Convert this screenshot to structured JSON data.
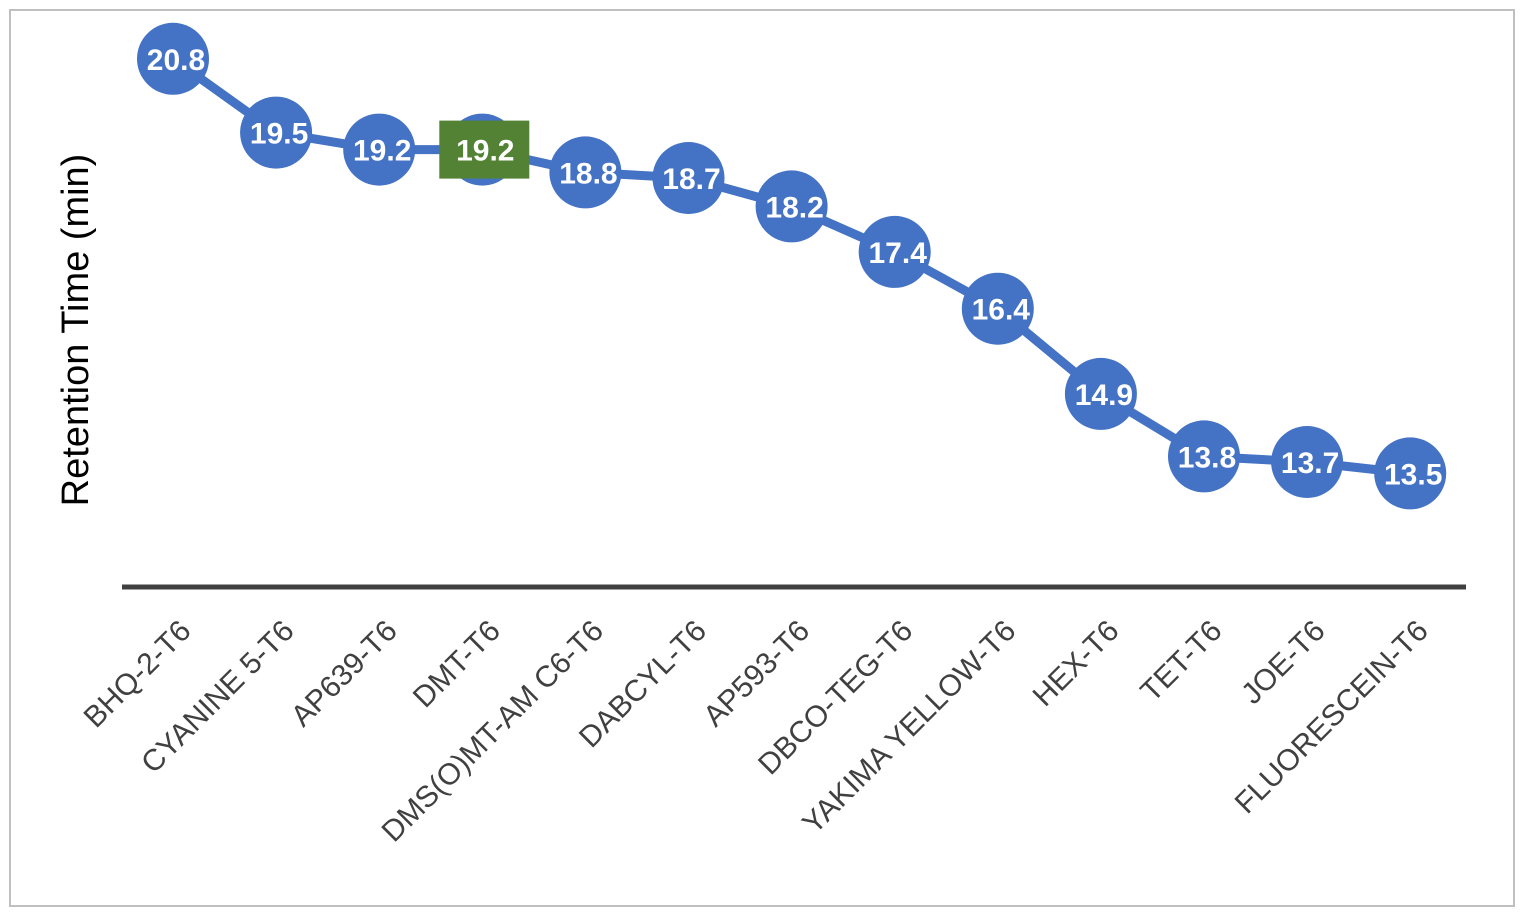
{
  "chart_data": {
    "type": "line",
    "title": "",
    "xlabel": "",
    "ylabel": "Retention Time (min)",
    "ylim": [
      11.5,
      21.5
    ],
    "grid": false,
    "legend": "none",
    "categories": [
      "BHQ-2-T6",
      "CYANINE 5-T6",
      "AP639-T6",
      "DMT-T6",
      "DMS(O)MT-AM C6-T6",
      "DABCYL-T6",
      "AP593-T6",
      "DBCO-TEG-T6",
      "YAKIMA YELLOW-T6",
      "HEX-T6",
      "TET-T6",
      "JOE-T6",
      "FLUORESCEIN-T6"
    ],
    "series": [
      {
        "name": "Retention Time",
        "values": [
          20.8,
          19.5,
          19.2,
          19.2,
          18.8,
          18.7,
          18.2,
          17.4,
          16.4,
          14.9,
          13.8,
          13.7,
          13.5
        ],
        "data_labels": [
          "20.8",
          "19.5",
          "19.2",
          "19.2",
          "18.8",
          "18.7",
          "18.2",
          "17.4",
          "16.4",
          "14.9",
          "13.8",
          "13.7",
          "13.5"
        ]
      }
    ],
    "highlight": {
      "category": "DMT-T6",
      "label": "19.2"
    },
    "colors": {
      "series": "#4472c4",
      "highlight": "#548235",
      "axis": "#404040",
      "frame": "#bfbfbf",
      "data_label": "#ffffff"
    }
  }
}
